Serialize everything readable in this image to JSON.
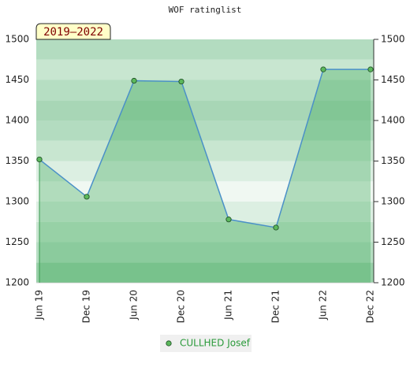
{
  "chart_data": {
    "type": "line",
    "title": "WOF ratinglist",
    "badge": "2019–2022",
    "categories": [
      "Jun 19",
      "Dec 19",
      "Jun 20",
      "Dec 20",
      "Jun 21",
      "Dec 21",
      "Jun 22",
      "Dec 22"
    ],
    "series": [
      {
        "name": "CULLHED Josef",
        "color": "#4a90c8",
        "marker_color": "#5cb85c",
        "values": [
          1352,
          1306,
          1449,
          1448,
          1278,
          1268,
          1463,
          1463
        ]
      }
    ],
    "ylim": [
      1200,
      1500
    ],
    "yticks": [
      1200,
      1250,
      1300,
      1350,
      1400,
      1450,
      1500
    ],
    "legend": "bottom"
  }
}
